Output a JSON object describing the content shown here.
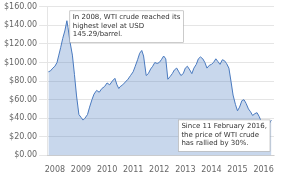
{
  "chart_data": {
    "type": "area",
    "x": [
      2007.75,
      2007.83,
      2007.92,
      2008.0,
      2008.08,
      2008.15,
      2008.22,
      2008.3,
      2008.38,
      2008.46,
      2008.5,
      2008.58,
      2008.67,
      2008.75,
      2008.83,
      2008.92,
      2009.0,
      2009.08,
      2009.15,
      2009.25,
      2009.33,
      2009.42,
      2009.5,
      2009.6,
      2009.7,
      2009.8,
      2009.9,
      2010.0,
      2010.1,
      2010.2,
      2010.3,
      2010.38,
      2010.45,
      2010.5,
      2010.6,
      2010.7,
      2010.8,
      2010.9,
      2011.0,
      2011.08,
      2011.17,
      2011.25,
      2011.33,
      2011.4,
      2011.5,
      2011.58,
      2011.67,
      2011.75,
      2011.83,
      2011.92,
      2012.0,
      2012.08,
      2012.17,
      2012.25,
      2012.33,
      2012.42,
      2012.5,
      2012.58,
      2012.67,
      2012.75,
      2012.83,
      2012.92,
      2013.0,
      2013.08,
      2013.17,
      2013.25,
      2013.33,
      2013.42,
      2013.5,
      2013.58,
      2013.67,
      2013.75,
      2013.83,
      2013.92,
      2014.0,
      2014.08,
      2014.17,
      2014.25,
      2014.33,
      2014.42,
      2014.5,
      2014.58,
      2014.67,
      2014.75,
      2014.83,
      2014.92,
      2015.0,
      2015.08,
      2015.17,
      2015.25,
      2015.33,
      2015.42,
      2015.5,
      2015.58,
      2015.67,
      2015.75,
      2015.83,
      2015.92,
      2016.0,
      2016.08,
      2016.17,
      2016.25,
      2016.3
    ],
    "values": [
      90,
      91,
      94,
      96,
      100,
      108,
      116,
      126,
      134,
      145,
      138,
      122,
      108,
      87,
      64,
      44,
      41,
      38,
      40,
      44,
      52,
      60,
      66,
      70,
      68,
      72,
      74,
      78,
      76,
      80,
      83,
      76,
      72,
      74,
      76,
      79,
      82,
      86,
      90,
      96,
      103,
      110,
      113,
      107,
      86,
      88,
      93,
      96,
      100,
      99,
      100,
      103,
      107,
      104,
      82,
      85,
      88,
      92,
      94,
      90,
      86,
      88,
      94,
      96,
      92,
      88,
      94,
      98,
      104,
      106,
      104,
      100,
      94,
      97,
      98,
      100,
      104,
      101,
      98,
      103,
      102,
      99,
      94,
      80,
      65,
      55,
      48,
      52,
      59,
      60,
      56,
      50,
      47,
      43,
      45,
      46,
      42,
      36,
      32,
      28,
      30,
      36,
      38
    ],
    "color": "#4a7abf",
    "xlim": [
      2007.7,
      2016.4
    ],
    "xticks": [
      2008,
      2009,
      2010,
      2011,
      2012,
      2013,
      2014,
      2015,
      2016
    ],
    "ylim": [
      0,
      160
    ],
    "yticks": [
      {
        "value": 0,
        "label": "$0.00"
      },
      {
        "value": 20,
        "label": "$20.00"
      },
      {
        "value": 40,
        "label": "$40.00"
      },
      {
        "value": 60,
        "label": "$60.00"
      },
      {
        "value": 80,
        "label": "$80.00"
      },
      {
        "value": 100,
        "label": "$100.00"
      },
      {
        "value": 120,
        "label": "$120.00"
      },
      {
        "value": 140,
        "label": "$140.00"
      },
      {
        "value": 160,
        "label": "$160.00"
      }
    ],
    "grid": "y",
    "annotations": [
      "In 2008, WTI crude reached its\nhighest level at USD\n145.29/barrel.",
      "Since 11 February 2016,\nthe price of WTI crude\nhas rallied by 30%."
    ]
  }
}
